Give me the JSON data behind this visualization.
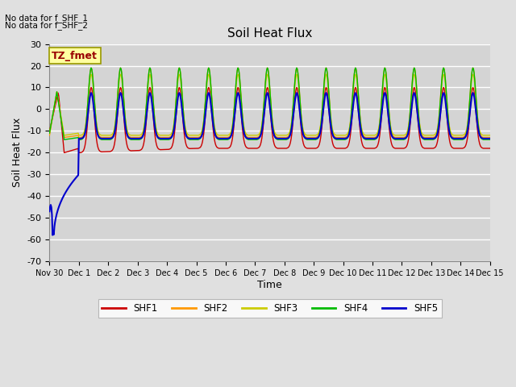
{
  "title": "Soil Heat Flux",
  "ylabel": "Soil Heat Flux",
  "xlabel": "Time",
  "ylim": [
    -70,
    30
  ],
  "background_color": "#e0e0e0",
  "plot_bg_color": "#d4d4d4",
  "colors": {
    "SHF1": "#cc0000",
    "SHF2": "#ff9900",
    "SHF3": "#cccc00",
    "SHF4": "#00bb00",
    "SHF5": "#0000cc"
  },
  "annotations": {
    "no_data_1": "No data for f_SHF_1",
    "no_data_2": "No data for f_SHF_2",
    "tz_label": "TZ_fmet"
  },
  "xtick_labels": [
    "Nov 30",
    "Dec 1",
    "Dec 2",
    "Dec 3",
    "Dec 4",
    "Dec 5",
    "Dec 6",
    "Dec 7",
    "Dec 8",
    "Dec 9",
    "Dec 10",
    "Dec 11",
    "Dec 12",
    "Dec 13",
    "Dec 14",
    "Dec 15"
  ],
  "ytick_labels": [
    -70,
    -60,
    -50,
    -40,
    -30,
    -20,
    -10,
    0,
    10,
    20,
    30
  ]
}
